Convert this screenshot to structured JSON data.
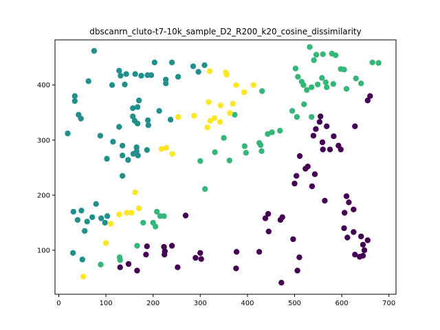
{
  "chart_data": {
    "type": "scatter",
    "title": "dbscanrn_cluto-t7-10k_sample_D2_R200_k20_cosine_dissimilarity",
    "xlabel": "",
    "ylabel": "",
    "xlim": [
      -8,
      715
    ],
    "ylim": [
      20,
      482
    ],
    "xticks": [
      0,
      100,
      200,
      300,
      400,
      500,
      600,
      700
    ],
    "yticks": [
      100,
      200,
      300,
      400
    ],
    "grid": false,
    "colors": {
      "cluster_0": "#440154",
      "cluster_1": "#21908d",
      "cluster_2": "#35b779",
      "cluster_3": "#fde725"
    },
    "series": [
      {
        "key": "cluster_0",
        "points": [
          [
            660,
            380
          ],
          [
            655,
            372
          ],
          [
            628,
            325
          ],
          [
            555,
            343
          ],
          [
            553,
            333
          ],
          [
            545,
            320
          ],
          [
            568,
            325
          ],
          [
            583,
            307
          ],
          [
            559,
            296
          ],
          [
            540,
            308
          ],
          [
            560,
            283
          ],
          [
            575,
            283
          ],
          [
            593,
            290
          ],
          [
            598,
            283
          ],
          [
            511,
            271
          ],
          [
            528,
            252
          ],
          [
            523,
            248
          ],
          [
            504,
            235
          ],
          [
            500,
            221
          ],
          [
            543,
            238
          ],
          [
            537,
            216
          ],
          [
            564,
            190
          ],
          [
            610,
            198
          ],
          [
            615,
            187
          ],
          [
            625,
            174
          ],
          [
            606,
            168
          ],
          [
            605,
            140
          ],
          [
            625,
            133
          ],
          [
            612,
            123
          ],
          [
            641,
            125
          ],
          [
            655,
            118
          ],
          [
            645,
            110
          ],
          [
            648,
            100
          ],
          [
            628,
            92
          ],
          [
            638,
            88
          ],
          [
            645,
            90
          ],
          [
            444,
            166
          ],
          [
            438,
            158
          ],
          [
            474,
            160
          ],
          [
            470,
            155
          ],
          [
            445,
            134
          ],
          [
            425,
            97
          ],
          [
            377,
            97
          ],
          [
            376,
            67
          ],
          [
            300,
            95
          ],
          [
            302,
            84
          ],
          [
            290,
            86
          ],
          [
            269,
            163
          ],
          [
            240,
            108
          ],
          [
            223,
            106
          ],
          [
            225,
            98
          ],
          [
            224,
            92
          ],
          [
            187,
            107
          ],
          [
            185,
            92
          ],
          [
            166,
            63
          ],
          [
            148,
            75
          ],
          [
            130,
            69
          ],
          [
            252,
            69
          ],
          [
            497,
            120
          ],
          [
            510,
            87
          ],
          [
            506,
            63
          ],
          [
            472,
            41
          ]
        ]
      },
      {
        "key": "cluster_1",
        "points": [
          [
            75,
            462
          ],
          [
            128,
            426
          ],
          [
            131,
            417
          ],
          [
            143,
            420
          ],
          [
            140,
            401
          ],
          [
            113,
            400
          ],
          [
            63,
            407
          ],
          [
            162,
            420
          ],
          [
            175,
            417
          ],
          [
            188,
            418
          ],
          [
            203,
            441
          ],
          [
            196,
            418
          ],
          [
            227,
            410
          ],
          [
            227,
            403
          ],
          [
            240,
            441
          ],
          [
            253,
            415
          ],
          [
            285,
            434
          ],
          [
            296,
            424
          ],
          [
            309,
            436
          ],
          [
            34,
            380
          ],
          [
            34,
            371
          ],
          [
            42,
            346
          ],
          [
            47,
            339
          ],
          [
            19,
            312
          ],
          [
            88,
            308
          ],
          [
            128,
            324
          ],
          [
            115,
            297
          ],
          [
            135,
            290
          ],
          [
            135,
            272
          ],
          [
            147,
            264
          ],
          [
            158,
            275
          ],
          [
            157,
            358
          ],
          [
            167,
            360
          ],
          [
            170,
            372
          ],
          [
            157,
            343
          ],
          [
            161,
            335
          ],
          [
            167,
            330
          ],
          [
            189,
            336
          ],
          [
            190,
            327
          ],
          [
            213,
            353
          ],
          [
            237,
            337
          ],
          [
            165,
            287
          ],
          [
            165,
            280
          ],
          [
            168,
            272
          ],
          [
            187,
            282
          ],
          [
            102,
            266
          ],
          [
            135,
            235
          ],
          [
            31,
            170
          ],
          [
            48,
            172
          ],
          [
            40,
            155
          ],
          [
            60,
            152
          ],
          [
            55,
            135
          ],
          [
            71,
            160
          ],
          [
            79,
            184
          ],
          [
            90,
            158
          ],
          [
            98,
            150
          ],
          [
            103,
            162
          ],
          [
            30,
            95
          ],
          [
            50,
            83
          ]
        ]
      },
      {
        "key": "cluster_2",
        "points": [
          [
            532,
            469
          ],
          [
            560,
            456
          ],
          [
            579,
            457
          ],
          [
            587,
            454
          ],
          [
            546,
            455
          ],
          [
            541,
            445
          ],
          [
            502,
            430
          ],
          [
            507,
            415
          ],
          [
            515,
            406
          ],
          [
            519,
            400
          ],
          [
            526,
            391
          ],
          [
            536,
            396
          ],
          [
            549,
            401
          ],
          [
            558,
            413
          ],
          [
            566,
            405
          ],
          [
            582,
            402
          ],
          [
            568,
            396
          ],
          [
            598,
            429
          ],
          [
            605,
            428
          ],
          [
            610,
            393
          ],
          [
            630,
            412
          ],
          [
            641,
            403
          ],
          [
            665,
            441
          ],
          [
            678,
            440
          ],
          [
            495,
            353
          ],
          [
            505,
            342
          ],
          [
            520,
            365
          ],
          [
            536,
            342
          ],
          [
            431,
            389
          ],
          [
            469,
            317
          ],
          [
            452,
            314
          ],
          [
            443,
            311
          ],
          [
            428,
            291
          ],
          [
            425,
            295
          ],
          [
            394,
            289
          ],
          [
            397,
            277
          ],
          [
            430,
            280
          ],
          [
            373,
            346
          ],
          [
            350,
            304
          ],
          [
            331,
            278
          ],
          [
            362,
            263
          ],
          [
            310,
            211
          ],
          [
            300,
            262
          ],
          [
            208,
            170
          ],
          [
            215,
            162
          ],
          [
            205,
            143
          ],
          [
            200,
            150
          ],
          [
            223,
            162
          ],
          [
            179,
            150
          ],
          [
            166,
            108
          ],
          [
            129,
            87
          ],
          [
            130,
            82
          ],
          [
            89,
            74
          ]
        ]
      },
      {
        "key": "cluster_3",
        "points": [
          [
            320,
            425
          ],
          [
            354,
            423
          ],
          [
            356,
            419
          ],
          [
            376,
            400
          ],
          [
            393,
            387
          ],
          [
            413,
            400
          ],
          [
            318,
            369
          ],
          [
            343,
            363
          ],
          [
            369,
            366
          ],
          [
            363,
            349
          ],
          [
            321,
            335
          ],
          [
            330,
            340
          ],
          [
            342,
            333
          ],
          [
            315,
            323
          ],
          [
            287,
            344
          ],
          [
            253,
            342
          ],
          [
            228,
            286
          ],
          [
            218,
            284
          ],
          [
            241,
            275
          ],
          [
            162,
            205
          ],
          [
            170,
            176
          ],
          [
            154,
            168
          ],
          [
            128,
            165
          ],
          [
            144,
            168
          ],
          [
            110,
            148
          ],
          [
            100,
            113
          ],
          [
            52,
            52
          ]
        ]
      }
    ]
  }
}
